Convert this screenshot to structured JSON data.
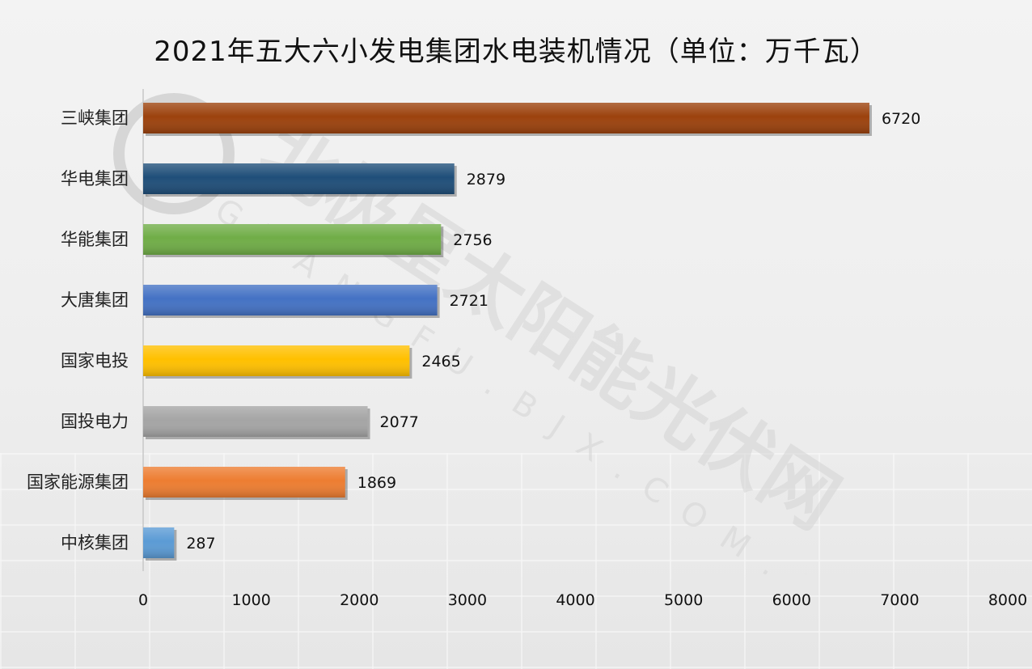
{
  "chart_data": {
    "type": "bar",
    "orientation": "horizontal",
    "title": "2021年五大六小发电集团水电装机情况（单位：万千瓦）",
    "categories": [
      "三峡集团",
      "华电集团",
      "华能集团",
      "大唐集团",
      "国家电投",
      "国投电力",
      "国家能源集团",
      "中核集团"
    ],
    "values": [
      6720,
      2879,
      2756,
      2721,
      2465,
      2077,
      1869,
      287
    ],
    "colors": [
      "#9c420d",
      "#1f4e79",
      "#70ad47",
      "#4472c4",
      "#ffc000",
      "#a5a5a5",
      "#ed7d31",
      "#5b9bd5"
    ],
    "xlim": [
      0,
      8000
    ],
    "xticks": [
      0,
      1000,
      2000,
      3000,
      4000,
      5000,
      6000,
      7000,
      8000
    ],
    "grid": false,
    "legend": "none"
  },
  "watermark": {
    "text": "北极星太阳能光伏网",
    "subtext": "GUANGFU.BJX.COM.CN"
  }
}
